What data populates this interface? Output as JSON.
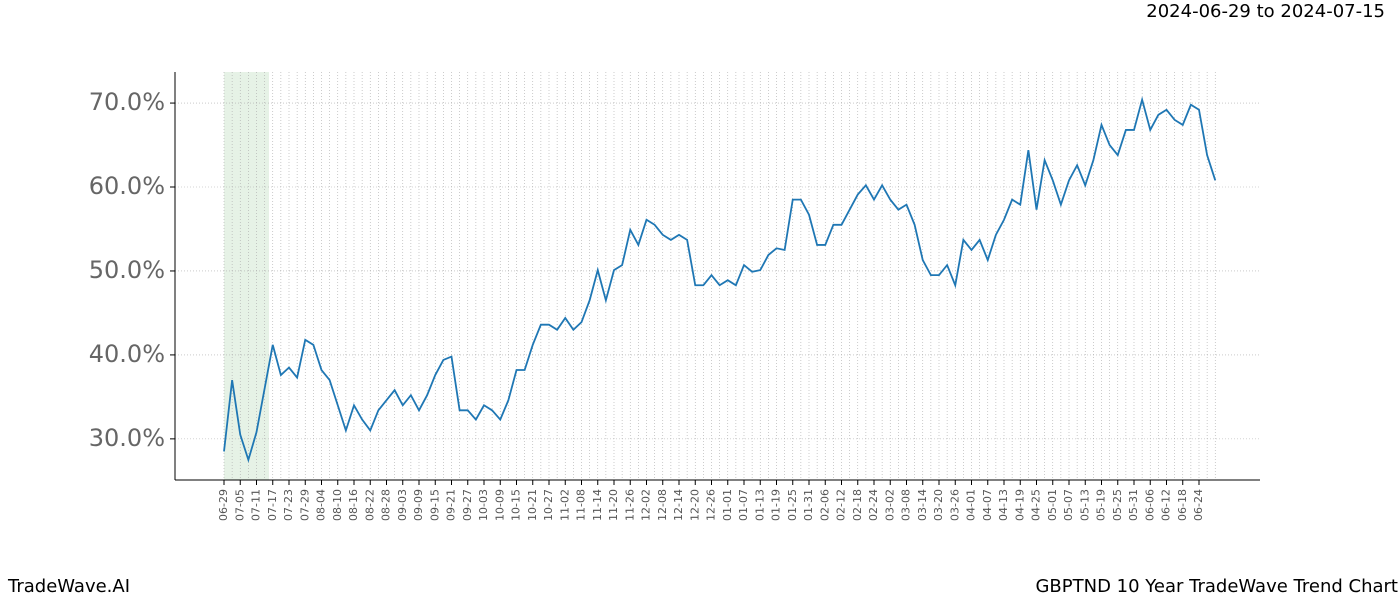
{
  "chart_data": {
    "type": "line",
    "title": "GBPTND 10 Year TradeWave Trend Chart",
    "subtitle": "2024-06-29 to 2024-07-15",
    "source": "TradeWave.AI",
    "categories": [
      "06-29",
      null,
      "07-05",
      null,
      "07-11",
      null,
      "07-17",
      null,
      "07-23",
      null,
      "07-29",
      null,
      "08-04",
      null,
      "08-10",
      null,
      "08-16",
      null,
      "08-22",
      null,
      "08-28",
      null,
      "09-03",
      null,
      "09-09",
      null,
      "09-15",
      null,
      "09-21",
      null,
      "09-27",
      null,
      "10-03",
      null,
      "10-09",
      null,
      "10-15",
      null,
      "10-21",
      null,
      "10-27",
      null,
      "11-02",
      null,
      "11-08",
      null,
      "11-14",
      null,
      "11-20",
      null,
      "11-26",
      null,
      "12-02",
      null,
      "12-08",
      null,
      "12-14",
      null,
      "12-20",
      null,
      "12-26",
      null,
      "01-01",
      null,
      "01-07",
      null,
      "01-13",
      null,
      "01-19",
      null,
      "01-25",
      null,
      "01-31",
      null,
      "02-06",
      null,
      "02-12",
      null,
      "02-18",
      null,
      "02-24",
      null,
      "03-02",
      null,
      "03-08",
      null,
      "03-14",
      null,
      "03-20",
      null,
      "03-26",
      null,
      "04-01",
      null,
      "04-07",
      null,
      "04-13",
      null,
      "04-19",
      null,
      "04-25",
      null,
      "05-01",
      null,
      "05-07",
      null,
      "05-13",
      null,
      "05-19",
      null,
      "05-25",
      null,
      "05-31",
      null,
      "06-06",
      null,
      "06-12",
      null,
      "06-18",
      null,
      "06-24",
      null,
      null
    ],
    "series": [
      {
        "color": "#1f77b4",
        "values": [
          28.5,
          37,
          30.5,
          27.5,
          30.8,
          36,
          41.2,
          37.6,
          38.5,
          37.3,
          41.8,
          41.2,
          38.2,
          37,
          34,
          31,
          34,
          32.3,
          31,
          33.4,
          34.6,
          35.8,
          34,
          35.2,
          33.4,
          35.2,
          37.6,
          39.4,
          39.8,
          33.4,
          33.4,
          32.3,
          34,
          33.4,
          32.3,
          34.6,
          38.2,
          38.2,
          41.2,
          43.6,
          43.6,
          43,
          44.4,
          43,
          43.9,
          46.5,
          50.1,
          46.5,
          50.1,
          50.7,
          54.9,
          53.1,
          56.1,
          55.5,
          54.3,
          53.7,
          54.3,
          53.7,
          48.3,
          48.3,
          49.5,
          48.3,
          48.9,
          48.3,
          50.7,
          49.9,
          50.1,
          51.9,
          52.7,
          52.5,
          58.5,
          58.5,
          56.7,
          53.1,
          53.1,
          55.5,
          55.5,
          57.3,
          59.1,
          60.2,
          58.5,
          60.2,
          58.5,
          57.3,
          57.9,
          55.5,
          51.3,
          49.5,
          49.5,
          50.7,
          48.3,
          53.7,
          52.5,
          53.7,
          51.3,
          54.3,
          56.1,
          58.5,
          57.9,
          64.4,
          57.3,
          63.2,
          60.8,
          57.9,
          60.8,
          62.6,
          60.2,
          63.2,
          67.4,
          65,
          63.8,
          66.8,
          66.8,
          70.4,
          66.8,
          68.6,
          69.2,
          68,
          67.4,
          69.8,
          69.2,
          63.8,
          60.8
        ]
      }
    ],
    "ylim": [
      25.1,
      73.7
    ],
    "yticks": [
      {
        "value": 30,
        "label": "30.0%"
      },
      {
        "value": 40,
        "label": "40.0%"
      },
      {
        "value": 50,
        "label": "50.0%"
      },
      {
        "value": 60,
        "label": "60.0%"
      },
      {
        "value": 70,
        "label": "70.0%"
      }
    ],
    "grid": true
  }
}
